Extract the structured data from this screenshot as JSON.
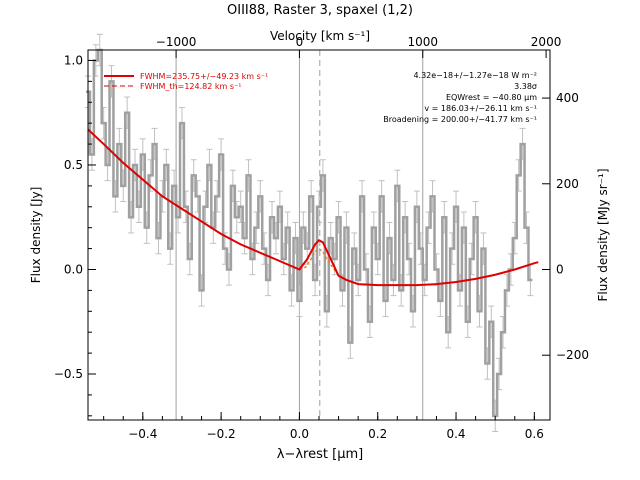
{
  "chart_data": {
    "type": "line",
    "title": "OIII88, Raster 3, spaxel (1,2)",
    "xlabel": "λ−λrest [µm]",
    "ylabel_left": "Flux density [Jy]",
    "ylabel_right": "Flux density [MJy sr⁻¹]",
    "top_axis_label": "Velocity [km s⁻¹]",
    "xlim": [
      -0.54,
      0.64
    ],
    "ylim": [
      -0.72,
      1.05
    ],
    "x_ticks": [
      -0.4,
      -0.2,
      0.0,
      0.2,
      0.4,
      0.6
    ],
    "x_tick_labels": [
      "−0.4",
      "−0.2",
      "0.0",
      "0.2",
      "0.4",
      "0.6"
    ],
    "y_ticks": [
      -0.5,
      0.0,
      0.5,
      1.0
    ],
    "y_tick_labels": [
      "−0.5",
      "0.0",
      "0.5",
      "1.0"
    ],
    "top_ticks": [
      {
        "label": "−1000",
        "x": -0.315
      },
      {
        "label": "0",
        "x": 0.0
      },
      {
        "label": "1000",
        "x": 0.315
      },
      {
        "label": "2000",
        "x": 0.63
      }
    ],
    "right_ticks": [
      {
        "label": "−200",
        "y": -0.41
      },
      {
        "label": "0",
        "y": 0.0
      },
      {
        "label": "200",
        "y": 0.41
      },
      {
        "label": "400",
        "y": 0.82
      }
    ],
    "vertical_lines": [
      -0.315,
      0.0,
      0.315
    ],
    "line_center": 0.052,
    "legend": [
      {
        "label": "FWHM=235.75+/−49.23 km s⁻¹",
        "style": "solid"
      },
      {
        "label": "FWHM_th=124.82 km s⁻¹",
        "style": "dashed"
      }
    ],
    "annotations": [
      "4.32e−18+/−1.27e−18 W m⁻²",
      "3.38σ",
      "EQWrest = −40.80 µm",
      "v = 186.03+/−26.11 km s⁻¹",
      "Broadening = 200.00+/−41.77 km s⁻¹"
    ],
    "series": [
      {
        "name": "spectrum",
        "x": [
          -0.54,
          -0.53,
          -0.52,
          -0.51,
          -0.5,
          -0.49,
          -0.48,
          -0.47,
          -0.46,
          -0.45,
          -0.44,
          -0.43,
          -0.42,
          -0.41,
          -0.4,
          -0.39,
          -0.38,
          -0.37,
          -0.36,
          -0.35,
          -0.34,
          -0.33,
          -0.32,
          -0.31,
          -0.3,
          -0.29,
          -0.28,
          -0.27,
          -0.26,
          -0.25,
          -0.24,
          -0.23,
          -0.22,
          -0.21,
          -0.2,
          -0.19,
          -0.18,
          -0.17,
          -0.16,
          -0.15,
          -0.14,
          -0.13,
          -0.12,
          -0.11,
          -0.1,
          -0.09,
          -0.08,
          -0.07,
          -0.06,
          -0.05,
          -0.04,
          -0.03,
          -0.02,
          -0.01,
          0.0,
          0.01,
          0.02,
          0.03,
          0.04,
          0.05,
          0.06,
          0.07,
          0.08,
          0.09,
          0.1,
          0.11,
          0.12,
          0.13,
          0.14,
          0.15,
          0.16,
          0.17,
          0.18,
          0.19,
          0.2,
          0.21,
          0.22,
          0.23,
          0.24,
          0.25,
          0.26,
          0.27,
          0.28,
          0.29,
          0.3,
          0.31,
          0.32,
          0.33,
          0.34,
          0.35,
          0.36,
          0.37,
          0.38,
          0.39,
          0.4,
          0.41,
          0.42,
          0.43,
          0.44,
          0.45,
          0.46,
          0.47,
          0.48,
          0.49,
          0.5,
          0.51,
          0.52,
          0.53,
          0.54,
          0.55,
          0.56,
          0.57,
          0.58,
          0.59
        ],
        "y": [
          0.85,
          0.55,
          1.0,
          1.05,
          0.7,
          0.5,
          0.9,
          0.35,
          0.6,
          0.4,
          0.75,
          0.25,
          0.5,
          0.3,
          0.55,
          0.2,
          0.45,
          0.6,
          0.15,
          0.35,
          0.5,
          0.1,
          0.4,
          0.25,
          0.7,
          0.3,
          0.05,
          0.45,
          0.35,
          -0.1,
          0.3,
          0.5,
          0.2,
          0.35,
          0.55,
          0.1,
          0.0,
          0.4,
          0.25,
          0.3,
          0.15,
          0.45,
          0.05,
          0.2,
          0.35,
          0.1,
          -0.05,
          0.25,
          0.15,
          0.3,
          0.05,
          0.2,
          -0.1,
          0.15,
          -0.15,
          0.2,
          0.1,
          0.35,
          -0.05,
          0.3,
          0.45,
          -0.2,
          0.15,
          0.05,
          0.25,
          -0.1,
          0.2,
          -0.35,
          0.1,
          -0.05,
          0.35,
          0.0,
          -0.25,
          0.2,
          0.05,
          0.35,
          -0.15,
          0.15,
          -0.05,
          0.4,
          -0.1,
          0.25,
          0.05,
          -0.2,
          0.3,
          0.1,
          -0.05,
          0.2,
          0.35,
          0.0,
          -0.15,
          0.25,
          -0.3,
          0.1,
          0.3,
          -0.1,
          0.2,
          -0.25,
          0.05,
          0.25,
          -0.2,
          0.1,
          -0.45,
          -0.25,
          -0.7,
          -0.5,
          -0.3,
          -0.1,
          0.0,
          0.15,
          0.45,
          0.6,
          0.2,
          -0.05
        ]
      },
      {
        "name": "fit",
        "x": [
          -0.54,
          -0.5,
          -0.45,
          -0.4,
          -0.35,
          -0.3,
          -0.25,
          -0.2,
          -0.15,
          -0.1,
          -0.05,
          0.0,
          0.02,
          0.04,
          0.05,
          0.06,
          0.08,
          0.1,
          0.12,
          0.15,
          0.2,
          0.25,
          0.3,
          0.35,
          0.4,
          0.45,
          0.5,
          0.55,
          0.6,
          0.61
        ],
        "y": [
          0.67,
          0.6,
          0.51,
          0.43,
          0.35,
          0.29,
          0.23,
          0.17,
          0.12,
          0.08,
          0.04,
          0.0,
          0.05,
          0.12,
          0.14,
          0.13,
          0.05,
          -0.03,
          -0.05,
          -0.07,
          -0.075,
          -0.075,
          -0.075,
          -0.07,
          -0.06,
          -0.045,
          -0.025,
          0.0,
          0.03,
          0.035
        ]
      },
      {
        "name": "gaussian",
        "x": [
          0.0,
          0.015,
          0.03,
          0.04,
          0.05,
          0.06,
          0.07,
          0.085,
          0.1,
          0.115
        ],
        "y": [
          -0.0,
          0.01,
          0.05,
          0.085,
          0.1,
          0.085,
          0.05,
          0.01,
          -0.03,
          -0.05
        ]
      }
    ]
  },
  "colors": {
    "spectrum": "#a0a0a0",
    "fit": "#e00000",
    "gaussian": "#e08020",
    "axes": "#000000",
    "grid_line": "#a0a0a0"
  }
}
